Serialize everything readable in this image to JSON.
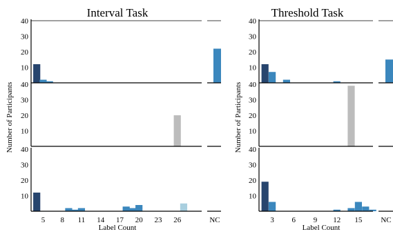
{
  "chart_data": [
    {
      "type": "bar",
      "title": "Interval Task",
      "ylabel": "Number of Participants",
      "xlabel": "Label Count",
      "x_ticks": [
        5,
        8,
        11,
        14,
        17,
        20,
        23,
        26
      ],
      "y_ticks": [
        10,
        20,
        30,
        40
      ],
      "ylim": [
        0,
        40
      ],
      "nc_label": "NC",
      "rows": [
        {
          "bars": [
            {
              "x": 4,
              "value": 12,
              "color": "#27456e"
            },
            {
              "x": 5,
              "value": 2,
              "color": "#3b87bd"
            },
            {
              "x": 6,
              "value": 1,
              "color": "#3b87bd"
            }
          ],
          "nc": [
            {
              "value": 22,
              "color": "#3b87bd"
            }
          ]
        },
        {
          "bars": [
            {
              "x": 26,
              "value": 20,
              "color": "#bcbcbc"
            }
          ],
          "nc": []
        },
        {
          "bars": [
            {
              "x": 4,
              "value": 12,
              "color": "#27456e"
            },
            {
              "x": 9,
              "value": 2,
              "color": "#3b87bd"
            },
            {
              "x": 10,
              "value": 1,
              "color": "#3b87bd"
            },
            {
              "x": 11,
              "value": 2,
              "color": "#3b87bd"
            },
            {
              "x": 18,
              "value": 3,
              "color": "#3b87bd"
            },
            {
              "x": 19,
              "value": 2,
              "color": "#3b87bd"
            },
            {
              "x": 20,
              "value": 4,
              "color": "#3b87bd"
            },
            {
              "x": 27,
              "value": 5,
              "color": "#a9cfdf"
            }
          ],
          "nc": []
        }
      ]
    },
    {
      "type": "bar",
      "title": "Threshold Task",
      "ylabel": "Number of Participants",
      "xlabel": "Label Count",
      "x_ticks": [
        3,
        6,
        9,
        12,
        15
      ],
      "y_ticks": [
        10,
        20,
        30,
        40
      ],
      "ylim": [
        0,
        40
      ],
      "nc_label": "NC",
      "rows": [
        {
          "bars": [
            {
              "x": 2,
              "value": 12,
              "color": "#27456e"
            },
            {
              "x": 3,
              "value": 7,
              "color": "#3b87bd"
            },
            {
              "x": 5,
              "value": 2,
              "color": "#3b87bd"
            },
            {
              "x": 12,
              "value": 1,
              "color": "#3b87bd"
            }
          ],
          "nc": [
            {
              "value": 15,
              "color": "#3b87bd"
            }
          ]
        },
        {
          "bars": [
            {
              "x": 14,
              "value": 39,
              "color": "#bcbcbc"
            }
          ],
          "nc": []
        },
        {
          "bars": [
            {
              "x": 2,
              "value": 19,
              "color": "#27456e"
            },
            {
              "x": 3,
              "value": 6,
              "color": "#3b87bd"
            },
            {
              "x": 12,
              "value": 1,
              "color": "#3b87bd"
            },
            {
              "x": 14,
              "value": 2,
              "color": "#3b87bd"
            },
            {
              "x": 15,
              "value": 6,
              "color": "#3b87bd"
            },
            {
              "x": 16,
              "value": 3,
              "color": "#3b87bd"
            },
            {
              "x": 17,
              "value": 1,
              "color": "#3b87bd"
            }
          ],
          "nc": []
        }
      ]
    }
  ]
}
